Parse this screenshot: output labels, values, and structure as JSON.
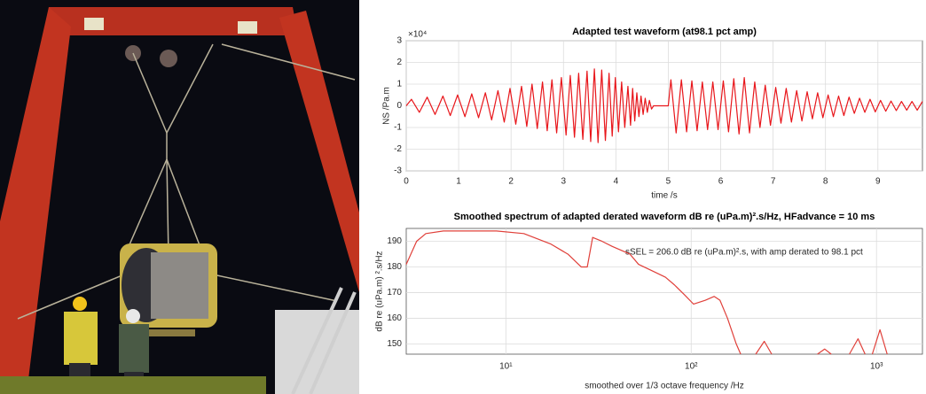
{
  "chart_data": [
    {
      "type": "line",
      "title": "Adapted test waveform (at98.1 pct amp)",
      "xlabel": "time /s",
      "ylabel": "NS /Pa.m",
      "y_multiplier": "×10⁴",
      "xlim": [
        0,
        9.85
      ],
      "ylim": [
        -3,
        3
      ],
      "xticks": [
        0,
        1,
        2,
        3,
        4,
        5,
        6,
        7,
        8,
        9
      ],
      "yticks": [
        -3,
        -2,
        -1,
        0,
        1,
        2,
        3
      ],
      "grid": true,
      "color": "#e8161b",
      "x": [
        0,
        0.1,
        0.25,
        0.4,
        0.55,
        0.7,
        0.84,
        0.98,
        1.12,
        1.25,
        1.38,
        1.51,
        1.63,
        1.75,
        1.87,
        1.98,
        2.09,
        2.2,
        2.3,
        2.4,
        2.5,
        2.6,
        2.69,
        2.78,
        2.87,
        2.96,
        3.05,
        3.13,
        3.21,
        3.29,
        3.37,
        3.45,
        3.52,
        3.59,
        3.66,
        3.73,
        3.8,
        3.87,
        3.93,
        3.99,
        4.05,
        4.11,
        4.17,
        4.23,
        4.28,
        4.32,
        4.36,
        4.4,
        4.44,
        4.48,
        4.52,
        4.56,
        4.6,
        4.64,
        4.68,
        4.72,
        5.0,
        5.05,
        5.15,
        5.25,
        5.35,
        5.45,
        5.55,
        5.65,
        5.75,
        5.85,
        5.95,
        6.05,
        6.15,
        6.25,
        6.35,
        6.45,
        6.55,
        6.65,
        6.75,
        6.85,
        6.95,
        7.05,
        7.15,
        7.25,
        7.35,
        7.45,
        7.55,
        7.65,
        7.75,
        7.85,
        7.95,
        8.05,
        8.15,
        8.25,
        8.35,
        8.45,
        8.55,
        8.65,
        8.75,
        8.85,
        8.95,
        9.05,
        9.15,
        9.25,
        9.35,
        9.45,
        9.55,
        9.65,
        9.75,
        9.85
      ],
      "values": [
        0,
        0.3,
        -0.3,
        0.4,
        -0.4,
        0.45,
        -0.45,
        0.5,
        -0.5,
        0.55,
        -0.55,
        0.6,
        -0.65,
        0.7,
        -0.75,
        0.8,
        -0.85,
        0.9,
        -0.95,
        1.0,
        -1.05,
        1.1,
        -1.15,
        1.2,
        -1.25,
        1.3,
        -1.35,
        1.4,
        -1.45,
        1.5,
        -1.55,
        1.6,
        -1.65,
        1.7,
        -1.7,
        1.65,
        -1.6,
        1.5,
        -1.4,
        1.3,
        -1.2,
        1.1,
        -1.0,
        0.9,
        -0.9,
        0.8,
        -0.7,
        0.6,
        -0.5,
        0.45,
        -0.4,
        0.35,
        -0.3,
        0.25,
        -0.15,
        0,
        0,
        1.2,
        -1.25,
        1.2,
        -1.2,
        1.15,
        -1.15,
        1.1,
        -1.1,
        1.1,
        -1.1,
        1.15,
        -1.2,
        1.25,
        -1.3,
        1.3,
        -1.25,
        1.1,
        -1.0,
        0.95,
        -0.9,
        0.85,
        -0.8,
        0.8,
        -0.75,
        0.7,
        -0.7,
        0.65,
        -0.6,
        0.6,
        -0.55,
        0.5,
        -0.5,
        0.45,
        -0.45,
        0.4,
        -0.35,
        0.35,
        -0.3,
        0.3,
        -0.28,
        0.25,
        -0.25,
        0.22,
        -0.22,
        0.2,
        -0.2,
        0.2,
        -0.2,
        0.2
      ]
    },
    {
      "type": "line",
      "title": "Smoothed spectrum of adapted derated waveform dB re (uPa.m)².s/Hz, HFadvance = 10 ms",
      "xlabel": "smoothed over 1/3 octave frequency /Hz",
      "ylabel": "dB re (uPa.m) ².s/Hz",
      "annotation": "sSEL = 206.0 dB re (uPa.m)².s, with amp derated to 98.1 pct",
      "xscale": "log",
      "xlim": [
        2.9,
        1770
      ],
      "ylim": [
        146,
        195
      ],
      "xticks": [
        {
          "value": 10,
          "label": "10¹"
        },
        {
          "value": 100,
          "label": "10²"
        },
        {
          "value": 1000,
          "label": "10³"
        }
      ],
      "yticks": [
        150,
        160,
        170,
        180,
        190
      ],
      "grid": true,
      "color": "#e0403a",
      "x": [
        2.9,
        3.3,
        3.7,
        4.6,
        6.4,
        8.9,
        12.5,
        17.4,
        21.6,
        25.5,
        27.5,
        29.4,
        33,
        37.5,
        46.7,
        52,
        61.5,
        72.6,
        81.2,
        92.4,
        103,
        119,
        133,
        143,
        157,
        175,
        185,
        200,
        223,
        248,
        272,
        400,
        480,
        525,
        570,
        650,
        714,
        795,
        868,
        910,
        949,
        1044,
        1142
      ],
      "values": [
        181,
        190,
        193,
        194,
        194,
        194,
        193,
        189,
        185,
        180,
        180,
        191.5,
        190,
        188,
        185,
        181,
        178.5,
        176,
        173,
        169,
        165.5,
        167,
        168.5,
        167,
        160,
        150,
        146,
        null,
        146,
        151,
        146,
        null,
        146,
        148,
        146,
        null,
        146,
        152,
        146,
        null,
        146,
        155.5,
        146
      ]
    }
  ]
}
